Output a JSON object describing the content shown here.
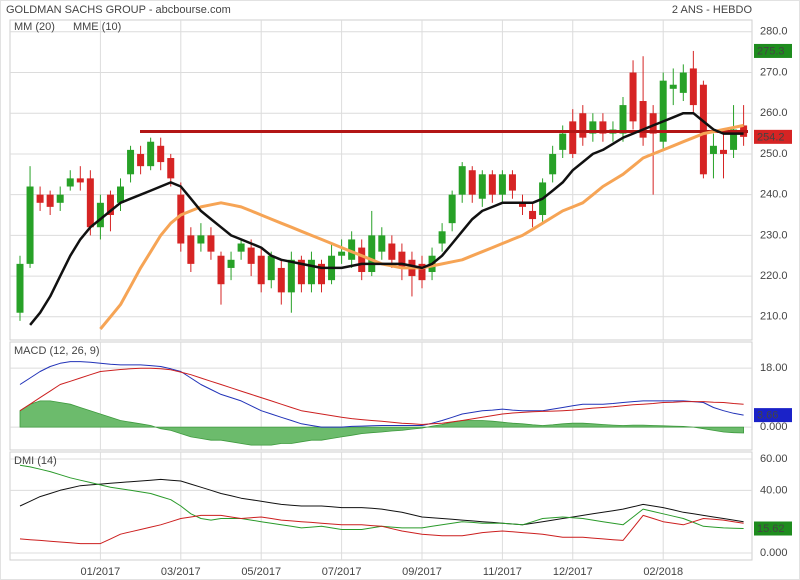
{
  "chart_data": [
    {
      "type": "candlestick",
      "title": "GOLDMAN SACHS GROUP - abcbourse.com",
      "subtitle": "2 ANS - HEBDO",
      "categories": [
        null,
        null,
        null,
        null,
        null,
        null,
        null,
        null,
        "01/2017",
        null,
        null,
        null,
        null,
        null,
        null,
        null,
        "03/2017",
        null,
        null,
        null,
        null,
        null,
        null,
        null,
        "05/2017",
        null,
        null,
        null,
        null,
        null,
        null,
        null,
        "07/2017",
        null,
        null,
        null,
        null,
        null,
        null,
        null,
        "09/2017",
        null,
        null,
        null,
        null,
        null,
        null,
        null,
        "11/2017",
        null,
        null,
        null,
        null,
        null,
        null,
        "12/2017",
        null,
        null,
        null,
        null,
        null,
        null,
        null,
        null,
        "02/2018",
        null,
        null,
        null,
        null,
        null,
        null,
        null,
        null
      ],
      "open": [
        211,
        223,
        240,
        240,
        238,
        242,
        244,
        244,
        232,
        240,
        238,
        245,
        250,
        247,
        252,
        249,
        240,
        230,
        228,
        230,
        225,
        222,
        226,
        227,
        225,
        219,
        222,
        216,
        224,
        218,
        223,
        219,
        225,
        224,
        227,
        221,
        226,
        228,
        226,
        224,
        223,
        221,
        228,
        233,
        240,
        246,
        239,
        245,
        240,
        245,
        238,
        236,
        235,
        245,
        251,
        258,
        260,
        255,
        258,
        255,
        255,
        270,
        263,
        260,
        253,
        266,
        265,
        271,
        267,
        250,
        251,
        251,
        257
      ],
      "high": [
        225,
        247,
        242,
        241,
        242,
        246,
        247,
        246,
        240,
        241,
        244,
        252,
        252,
        254,
        254,
        250,
        243,
        232,
        233,
        232,
        226,
        226,
        229,
        229,
        227,
        226,
        224,
        226,
        225,
        226,
        224,
        228,
        229,
        231,
        229,
        236,
        232,
        230,
        228,
        226,
        225,
        227,
        233,
        241,
        248,
        247,
        246,
        246,
        246,
        246,
        240,
        238,
        244,
        252,
        257,
        261,
        262,
        260,
        260,
        258,
        264,
        273,
        274,
        262,
        270,
        271,
        272,
        275.3,
        268,
        255,
        256,
        262,
        262
      ],
      "low": [
        209,
        222,
        236,
        235,
        236,
        241,
        241,
        230,
        229,
        231,
        236,
        243,
        245,
        246,
        246,
        242,
        226,
        221,
        226,
        224,
        213,
        219,
        224,
        220,
        216,
        217,
        213,
        211,
        216,
        216,
        216,
        218,
        223,
        222,
        219,
        220,
        224,
        222,
        219,
        215,
        217,
        219,
        226,
        231,
        238,
        238,
        237,
        238,
        238,
        239,
        235,
        232,
        233,
        243,
        249,
        249,
        252,
        253,
        253,
        253,
        253,
        256,
        252,
        240,
        251,
        262,
        263,
        260,
        244,
        244,
        244,
        249,
        252
      ],
      "close": [
        223,
        242,
        238,
        237,
        240,
        244,
        243,
        232,
        238,
        235,
        242,
        251,
        247,
        253,
        248,
        244,
        228,
        223,
        230,
        226,
        218,
        224,
        228,
        223,
        218,
        225,
        216,
        224,
        218,
        224,
        218,
        225,
        226,
        229,
        221,
        230,
        230,
        224,
        222,
        220,
        219,
        225,
        231,
        240,
        247,
        240,
        245,
        240,
        245,
        241,
        237,
        234,
        243,
        250,
        255,
        250,
        254,
        258,
        255,
        256,
        262,
        258,
        254,
        255,
        268,
        267,
        270,
        262,
        245,
        252,
        250,
        256,
        254.2
      ],
      "up_color": "#27a127",
      "down_color": "#d62424",
      "series": [
        {
          "name": "MM (20)",
          "color": "#f6a455",
          "values": [
            null,
            null,
            null,
            null,
            null,
            null,
            null,
            null,
            207,
            210,
            213,
            217.5,
            222,
            226,
            230,
            233,
            235,
            236,
            237,
            237.5,
            238,
            237.5,
            237,
            236,
            235,
            234,
            233,
            232,
            231,
            230,
            229,
            228,
            227,
            226,
            225,
            224,
            223,
            222.5,
            222,
            222,
            222,
            222.5,
            223,
            223.5,
            224,
            225,
            226,
            227,
            228,
            229,
            230,
            231.5,
            233,
            234.5,
            236,
            237,
            238,
            240,
            242,
            243.5,
            245,
            247,
            249,
            250,
            251,
            252,
            253,
            254,
            255,
            255.5,
            256,
            256.5,
            257
          ]
        },
        {
          "name": "MME (10)",
          "color": "#111111",
          "values": [
            null,
            208,
            211,
            215,
            220,
            225,
            229,
            232,
            234,
            236,
            238,
            239,
            240,
            241,
            242,
            243,
            242,
            239,
            236,
            234,
            232,
            230,
            229,
            228,
            227,
            225,
            224,
            223.5,
            223,
            222.5,
            222,
            222,
            222,
            222.5,
            223,
            223,
            223,
            223,
            223,
            222.5,
            222,
            223,
            225,
            228,
            231,
            234,
            236,
            237,
            238,
            238,
            238,
            238,
            239,
            241,
            243,
            246,
            248,
            250,
            251,
            252.5,
            254,
            255,
            256,
            257,
            258,
            259,
            260,
            260,
            258,
            256,
            255,
            255,
            255
          ]
        }
      ],
      "resistance": {
        "value": 255.5,
        "color": "#b31616"
      },
      "ylim": [
        204.3,
        282.9
      ],
      "yticks": [
        {
          "value": 210,
          "label": "210.0"
        },
        {
          "value": 220,
          "label": "220.0"
        },
        {
          "value": 230,
          "label": "230.0"
        },
        {
          "value": 240,
          "label": "240.0"
        },
        {
          "value": 250,
          "label": "250.0"
        },
        {
          "value": 260,
          "label": "260.0"
        },
        {
          "value": 270,
          "label": "270.0"
        },
        {
          "value": 280,
          "label": "280.0"
        }
      ],
      "markers": [
        {
          "value": 275.3,
          "color": "#1e8c1e"
        },
        {
          "value": 254.2,
          "color": "#d62424"
        }
      ],
      "grid": true
    },
    {
      "type": "macd",
      "title": "MACD (12, 26, 9)",
      "series": [
        {
          "color": "#2233b8",
          "values": [
            13,
            15,
            17,
            18.5,
            19.5,
            20,
            20,
            19.8,
            19.5,
            19.2,
            19,
            19,
            19,
            18.8,
            18.5,
            17.8,
            17,
            15,
            13,
            11.5,
            10,
            9,
            8,
            6.5,
            5,
            4,
            3,
            2,
            1,
            0.5,
            0,
            0,
            0,
            0.2,
            0.3,
            0.4,
            0.5,
            0.5,
            0.5,
            0.5,
            0.5,
            1.2,
            2,
            3,
            4,
            4.5,
            5,
            5.2,
            5.5,
            5.2,
            5,
            5,
            5,
            5.5,
            6,
            6.5,
            7,
            7,
            7,
            7.2,
            7.5,
            7.8,
            8,
            8,
            8,
            8,
            8,
            7.8,
            7.5,
            6,
            5,
            4.2,
            3.66
          ]
        },
        {
          "color": "#cc2020",
          "values": [
            5,
            7,
            9,
            11,
            13,
            14,
            15,
            16,
            17,
            17.3,
            17.6,
            17.8,
            18,
            18,
            17.8,
            17.5,
            16.8,
            16,
            15,
            14,
            13,
            12,
            11,
            10,
            9,
            8,
            7,
            6,
            5,
            4.5,
            4,
            3.5,
            3,
            2.6,
            2.3,
            2,
            1.8,
            1.5,
            1.2,
            1,
            0.8,
            1,
            1.2,
            1.6,
            2,
            2.5,
            3,
            3.5,
            4,
            4.3,
            4.5,
            4.7,
            4.8,
            4.9,
            5,
            5.2,
            5.5,
            5.8,
            6,
            6.2,
            6.5,
            6.8,
            7,
            7.2,
            7.5,
            7.6,
            7.8,
            7.8,
            7.8,
            7.6,
            7.5,
            7.2,
            7
          ]
        }
      ],
      "histogram": {
        "color": "#6cbb6c",
        "values": [
          5,
          7,
          8,
          8,
          7.5,
          7,
          6,
          5,
          4,
          3,
          2,
          1.5,
          1,
          0.5,
          -0.5,
          -1,
          -2,
          -3,
          -3.5,
          -4,
          -4,
          -4.5,
          -5,
          -5.5,
          -5.5,
          -5.5,
          -5,
          -5,
          -4.5,
          -4,
          -4,
          -3.5,
          -3,
          -2.5,
          -2,
          -1.7,
          -1.5,
          -1.2,
          -1,
          -0.6,
          -0.3,
          0.3,
          0.8,
          1.5,
          2,
          2,
          2,
          1.8,
          1.5,
          1.2,
          1,
          0.7,
          0.5,
          0.7,
          1,
          1.2,
          1.2,
          1,
          0.8,
          0.6,
          0.5,
          0.6,
          0.6,
          0.5,
          0.4,
          0.3,
          0.2,
          0,
          -0.5,
          -1,
          -1.5,
          -1.7,
          -1.8
        ]
      },
      "ylim": [
        -7,
        26
      ],
      "yticks": [
        {
          "value": 0,
          "label": "0.000"
        },
        {
          "value": 18,
          "label": "18.00"
        }
      ],
      "markers": [
        {
          "value": 3.66,
          "color": "#1a22c8"
        }
      ],
      "grid": true
    },
    {
      "type": "dmi",
      "title": "DMI (14)",
      "series": [
        {
          "color": "#111111",
          "values": [
            30,
            33,
            36,
            38,
            40,
            41.5,
            43,
            43.5,
            44,
            44.5,
            45,
            45.5,
            46,
            46.5,
            47,
            46.5,
            46,
            44,
            42,
            40,
            38,
            36.5,
            35,
            34,
            33,
            32,
            31,
            30.5,
            30,
            30,
            30,
            29.5,
            29,
            29,
            29,
            28.5,
            28,
            27,
            26,
            24.5,
            23,
            22.5,
            22,
            21.5,
            21,
            20.5,
            20,
            19.5,
            19,
            18.5,
            18,
            19,
            20,
            21,
            22,
            23,
            24,
            25,
            26,
            27,
            28,
            29.5,
            31,
            30,
            29,
            27.5,
            26,
            25,
            24,
            23,
            22,
            21,
            20
          ]
        },
        {
          "color": "#2a9a2a",
          "values": [
            56,
            55,
            53.5,
            52,
            50,
            48,
            46.5,
            45,
            43.5,
            42,
            41,
            40,
            39,
            38,
            36,
            34,
            30,
            25,
            22,
            21,
            22,
            22,
            22,
            21,
            20,
            19,
            18,
            17,
            16,
            16.5,
            17,
            16,
            15,
            15,
            15,
            16,
            17,
            16.5,
            16,
            16,
            16,
            17,
            18,
            19,
            20,
            19.5,
            19,
            19,
            19,
            18.5,
            18,
            20,
            22,
            22.5,
            23,
            22.5,
            22,
            21,
            20,
            19,
            18,
            23,
            28,
            26.5,
            25,
            23.5,
            22,
            19.5,
            17,
            16.5,
            16,
            15.8,
            15.62
          ]
        },
        {
          "color": "#cc1f1f",
          "values": [
            9,
            8.5,
            8,
            7.5,
            7,
            6.5,
            6,
            6,
            6,
            9,
            12,
            13.5,
            15,
            16.5,
            18,
            20,
            22,
            23,
            24,
            24,
            24,
            23,
            22,
            22.5,
            23,
            22,
            21,
            20.5,
            20,
            19.5,
            19,
            18.5,
            18,
            18,
            18,
            17.5,
            17,
            15.5,
            14,
            13,
            12,
            11.5,
            11,
            11,
            11,
            12,
            13,
            13.5,
            14,
            13.5,
            13,
            12.5,
            12,
            11,
            10,
            10,
            10,
            9.5,
            9,
            8.5,
            8,
            16,
            24,
            22,
            20,
            19,
            18,
            20,
            22,
            21.5,
            21,
            20,
            19
          ]
        }
      ],
      "ylim": [
        -4.5,
        64.5
      ],
      "yticks": [
        {
          "value": 0,
          "label": "0.000"
        },
        {
          "value": 40,
          "label": "40.00"
        },
        {
          "value": 60,
          "label": "60.00"
        }
      ],
      "markers": [
        {
          "value": 15.62,
          "color": "#1e8c1e"
        }
      ],
      "grid": true
    }
  ]
}
